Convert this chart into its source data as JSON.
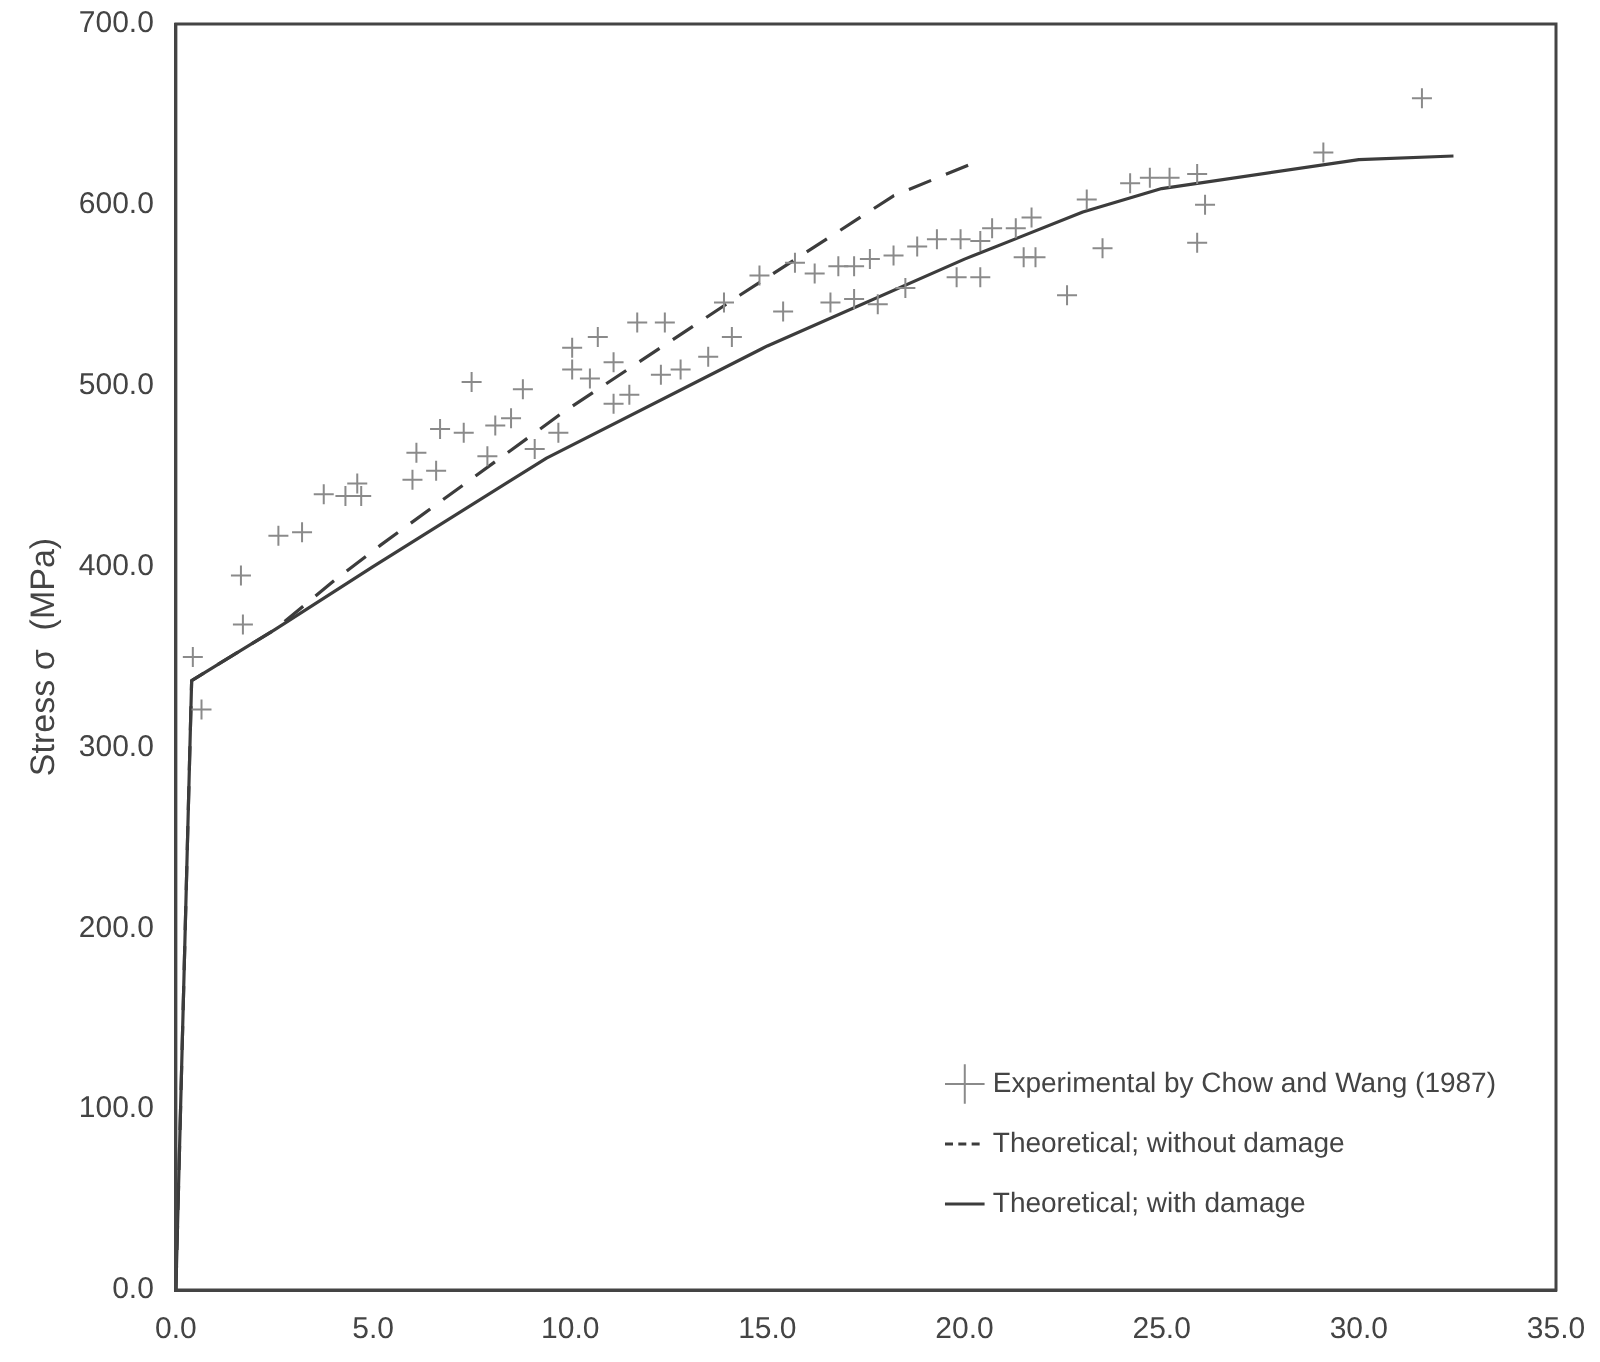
{
  "chart_data": {
    "type": "scatter",
    "ylabel": "Stress σ  (MPa)",
    "xlim": [
      0,
      35
    ],
    "ylim": [
      0,
      700
    ],
    "xticks": [
      {
        "value": 0,
        "label": "0.0"
      },
      {
        "value": 5,
        "label": "5.0"
      },
      {
        "value": 10,
        "label": "10.0"
      },
      {
        "value": 15,
        "label": "15.0"
      },
      {
        "value": 20,
        "label": "20.0"
      },
      {
        "value": 25,
        "label": "25.0"
      },
      {
        "value": 30,
        "label": "30.0"
      },
      {
        "value": 35,
        "label": "35.0"
      }
    ],
    "yticks": [
      {
        "value": 0,
        "label": "0.0"
      },
      {
        "value": 100,
        "label": "100.0"
      },
      {
        "value": 200,
        "label": "200.0"
      },
      {
        "value": 300,
        "label": "300.0"
      },
      {
        "value": 400,
        "label": "400.0"
      },
      {
        "value": 500,
        "label": "500.0"
      },
      {
        "value": 600,
        "label": "600.0"
      },
      {
        "value": 700,
        "label": "700.0"
      }
    ],
    "grid": false,
    "legend": "bottom right",
    "series": [
      {
        "name": "Experimental by Chow and Wang (1987)",
        "type": "scatter",
        "marker": "cross",
        "color": "#8a8a8a",
        "x": [
          0.43,
          0.65,
          1.65,
          1.7,
          2.6,
          3.2,
          3.75,
          4.3,
          4.7,
          4.6,
          6.0,
          6.6,
          6.1,
          6.7,
          7.3,
          7.5,
          7.9,
          8.5,
          8.8,
          8.1,
          9.1,
          9.7,
          10.05,
          10.7,
          10.05,
          11.1,
          11.7,
          12.4,
          10.5,
          11.1,
          11.5,
          12.3,
          12.8,
          13.5,
          14.1,
          13.9,
          14.8,
          15.4,
          15.7,
          16.2,
          16.8,
          17.2,
          17.6,
          18.2,
          16.6,
          17.2,
          17.8,
          18.5,
          18.8,
          19.3,
          19.9,
          20.4,
          20.7,
          21.3,
          21.7,
          19.8,
          20.4,
          21.5,
          21.8,
          22.6,
          23.1,
          23.5,
          24.2,
          24.7,
          25.2,
          25.9,
          26.1,
          25.9,
          29.1,
          31.6
        ],
        "values": [
          350,
          321,
          395,
          368,
          417,
          419,
          440,
          439,
          439,
          446,
          448,
          453,
          463,
          476,
          474,
          502,
          461,
          482,
          498,
          478,
          465,
          474,
          521,
          527,
          509,
          513,
          535,
          535,
          504,
          490,
          495,
          506,
          509,
          516,
          527,
          546,
          561,
          541,
          568,
          562,
          566,
          566,
          570,
          572,
          546,
          548,
          545,
          554,
          577,
          581,
          581,
          580,
          587,
          587,
          593,
          560,
          560,
          571,
          571,
          550,
          603,
          576,
          612,
          615,
          615,
          617,
          600,
          579,
          629,
          659
        ]
      },
      {
        "name": "Theoretical; without damage",
        "type": "line",
        "line_style": "dashed",
        "marker": "none",
        "color": "#3c3c3c",
        "x": [
          0,
          0.4,
          2.5,
          4.0,
          5.2,
          9.8,
          14.3,
          18.2,
          20.1
        ],
        "values": [
          0,
          337,
          365,
          392,
          412,
          485,
          550,
          605,
          622
        ]
      },
      {
        "name": "Theoretical; with damage",
        "type": "line",
        "line_style": "solid",
        "marker": "none",
        "color": "#3c3c3c",
        "x": [
          0,
          0.4,
          2.5,
          5,
          9.4,
          15,
          20,
          23,
          25,
          30,
          32.4
        ],
        "values": [
          0,
          337,
          365,
          400,
          460,
          522,
          570,
          596,
          609,
          625,
          627
        ]
      }
    ]
  }
}
